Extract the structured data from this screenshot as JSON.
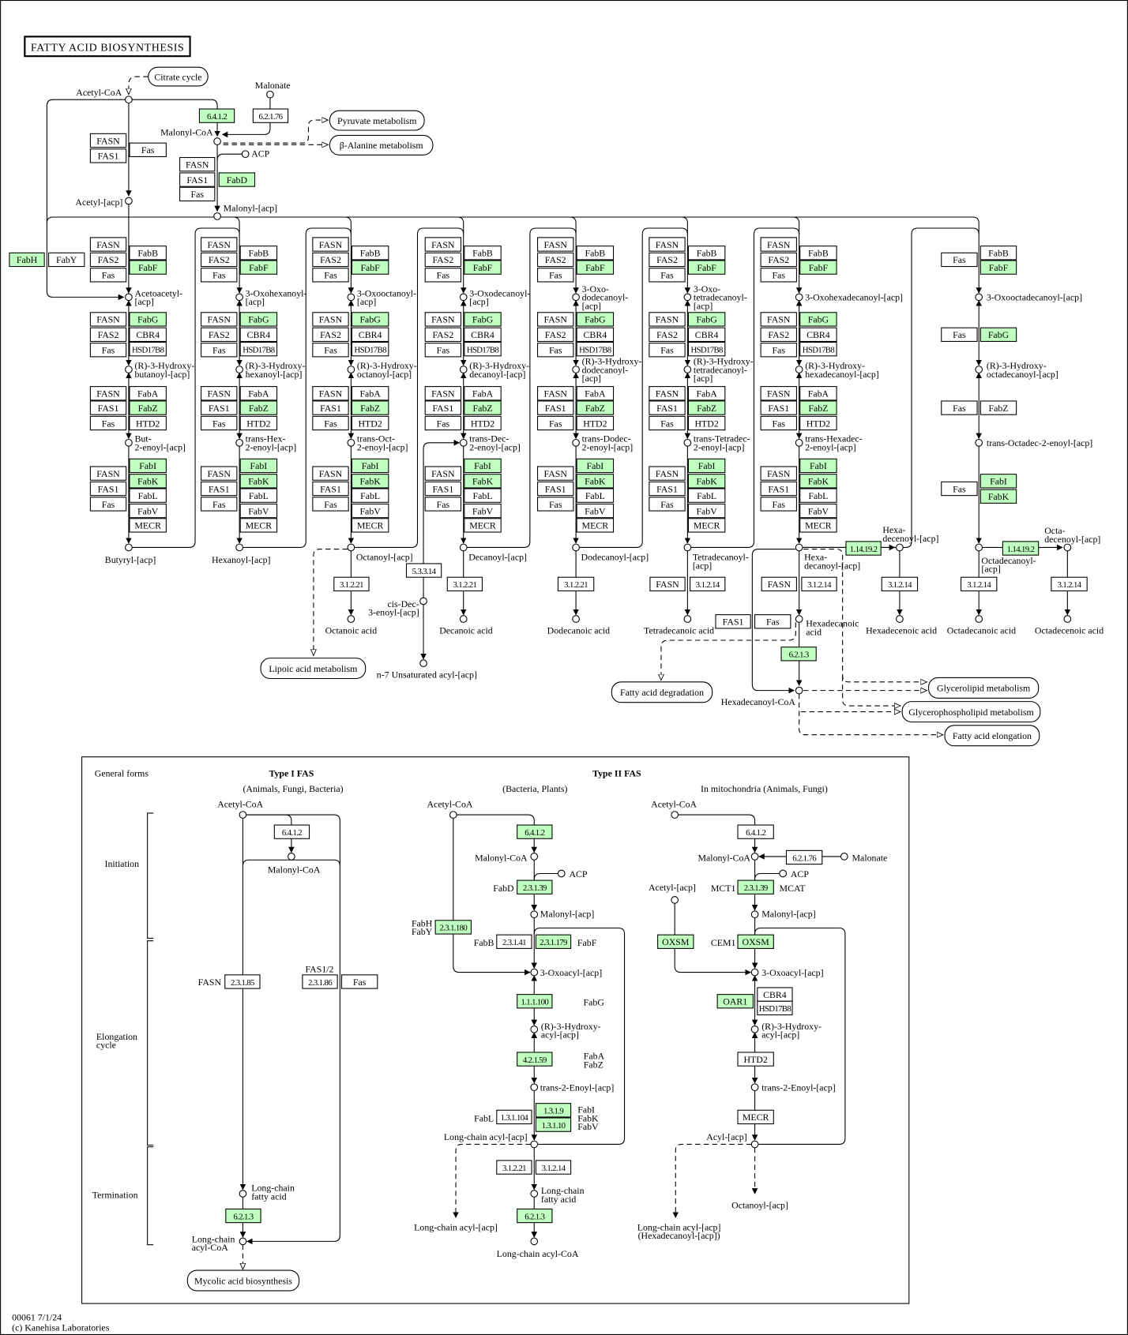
{
  "title": "FATTY ACID BIOSYNTHESIS",
  "colors": {
    "highlight": "#bfffbf",
    "line": "#000000",
    "background": "#ffffff"
  },
  "maps": [
    "Citrate cycle",
    "Pyruvate metabolism",
    "β-Alanine metabolism",
    "Lipoic acid metabolism",
    "Fatty acid degradation",
    "Glycerolipid metabolism",
    "Glycerophospholipid metabolism",
    "Fatty acid elongation",
    "Mycolic acid biosynthesis"
  ],
  "elongation_columns": [
    {
      "condensing_left": [
        "FASN",
        "FAS2",
        "Fas"
      ],
      "condensing_right": [
        {
          "label": "FabB"
        },
        {
          "label": "FabF",
          "highlighted": true
        }
      ],
      "oxoacyl": [
        "Acetoacetyl-",
        "[acp]"
      ],
      "reductase_left": [
        "FASN",
        "FAS2",
        "Fas"
      ],
      "reductase_right": [
        {
          "label": "FabG",
          "highlighted": true
        },
        {
          "label": "CBR4"
        },
        {
          "label": "HSD17B8"
        }
      ],
      "hydroxyacyl": [
        "(R)-3-Hydroxy-",
        "butanoyl-[acp]"
      ],
      "dehydratase_left": [
        "FASN",
        "FAS1",
        "Fas"
      ],
      "dehydratase_right": [
        {
          "label": "FabA"
        },
        {
          "label": "FabZ",
          "highlighted": true
        },
        {
          "label": "HTD2"
        }
      ],
      "enoyl": [
        "But-",
        "2-enoyl-[acp]"
      ],
      "enoyl_reductase_left": [
        "FASN",
        "FAS1",
        "Fas"
      ],
      "enoyl_reductase_right": [
        {
          "label": "FabI",
          "highlighted": true
        },
        {
          "label": "FabK",
          "highlighted": true
        },
        {
          "label": "FabL"
        },
        {
          "label": "FabV"
        },
        {
          "label": "MECR"
        }
      ],
      "product": [
        "Butyryl-[acp]"
      ]
    },
    {
      "condensing_left": [
        "FASN",
        "FAS2",
        "Fas"
      ],
      "condensing_right": [
        {
          "label": "FabB"
        },
        {
          "label": "FabF",
          "highlighted": true
        }
      ],
      "oxoacyl": [
        "3-Oxohexanoyl-",
        "[acp]"
      ],
      "reductase_left": [
        "FASN",
        "FAS2",
        "Fas"
      ],
      "reductase_right": [
        {
          "label": "FabG",
          "highlighted": true
        },
        {
          "label": "CBR4"
        },
        {
          "label": "HSD17B8"
        }
      ],
      "hydroxyacyl": [
        "(R)-3-Hydroxy-",
        "hexanoyl-[acp]"
      ],
      "dehydratase_left": [
        "FASN",
        "FAS1",
        "Fas"
      ],
      "dehydratase_right": [
        {
          "label": "FabA"
        },
        {
          "label": "FabZ",
          "highlighted": true
        },
        {
          "label": "HTD2"
        }
      ],
      "enoyl": [
        "trans-Hex-",
        "2-enoyl-[acp]"
      ],
      "enoyl_reductase_left": [
        "FASN",
        "FAS1",
        "Fas"
      ],
      "enoyl_reductase_right": [
        {
          "label": "FabI",
          "highlighted": true
        },
        {
          "label": "FabK",
          "highlighted": true
        },
        {
          "label": "FabL"
        },
        {
          "label": "FabV"
        },
        {
          "label": "MECR"
        }
      ],
      "product": [
        "Hexanoyl-[acp]"
      ]
    },
    {
      "condensing_left": [
        "FASN",
        "FAS2",
        "Fas"
      ],
      "condensing_right": [
        {
          "label": "FabB"
        },
        {
          "label": "FabF",
          "highlighted": true
        }
      ],
      "oxoacyl": [
        "3-Oxooctanoyl-",
        "[acp]"
      ],
      "reductase_left": [
        "FASN",
        "FAS2",
        "Fas"
      ],
      "reductase_right": [
        {
          "label": "FabG",
          "highlighted": true
        },
        {
          "label": "CBR4"
        },
        {
          "label": "HSD17B8"
        }
      ],
      "hydroxyacyl": [
        "(R)-3-Hydroxy-",
        "octanoyl-[acp]"
      ],
      "dehydratase_left": [
        "FASN",
        "FAS1",
        "Fas"
      ],
      "dehydratase_right": [
        {
          "label": "FabA"
        },
        {
          "label": "FabZ",
          "highlighted": true
        },
        {
          "label": "HTD2"
        }
      ],
      "enoyl": [
        "trans-Oct-",
        "2-enoyl-[acp]"
      ],
      "enoyl_reductase_left": [
        "FASN",
        "FAS1",
        "Fas"
      ],
      "enoyl_reductase_right": [
        {
          "label": "FabI",
          "highlighted": true
        },
        {
          "label": "FabK",
          "highlighted": true
        },
        {
          "label": "FabL"
        },
        {
          "label": "FabV"
        },
        {
          "label": "MECR"
        }
      ],
      "product": [
        "Octanoyl-[acp]"
      ]
    },
    {
      "condensing_left": [
        "FASN",
        "FAS2",
        "Fas"
      ],
      "condensing_right": [
        {
          "label": "FabB"
        },
        {
          "label": "FabF",
          "highlighted": true
        }
      ],
      "oxoacyl": [
        "3-Oxodecanoyl-",
        "[acp]"
      ],
      "reductase_left": [
        "FASN",
        "FAS2",
        "Fas"
      ],
      "reductase_right": [
        {
          "label": "FabG",
          "highlighted": true
        },
        {
          "label": "CBR4"
        },
        {
          "label": "HSD17B8"
        }
      ],
      "hydroxyacyl": [
        "(R)-3-Hydroxy-",
        "decanoyl-[acp]"
      ],
      "dehydratase_left": [
        "FASN",
        "FAS1",
        "Fas"
      ],
      "dehydratase_right": [
        {
          "label": "FabA"
        },
        {
          "label": "FabZ",
          "highlighted": true
        },
        {
          "label": "HTD2"
        }
      ],
      "enoyl": [
        "trans-Dec-",
        "2-enoyl-[acp]"
      ],
      "enoyl_reductase_left": [
        "FASN",
        "FAS1",
        "Fas"
      ],
      "enoyl_reductase_right": [
        {
          "label": "FabI",
          "highlighted": true
        },
        {
          "label": "FabK",
          "highlighted": true
        },
        {
          "label": "FabL"
        },
        {
          "label": "FabV"
        },
        {
          "label": "MECR"
        }
      ],
      "product": [
        "Decanoyl-[acp]"
      ]
    },
    {
      "condensing_left": [
        "FASN",
        "FAS2",
        "Fas"
      ],
      "condensing_right": [
        {
          "label": "FabB"
        },
        {
          "label": "FabF",
          "highlighted": true
        }
      ],
      "oxoacyl": [
        "3-Oxo-",
        "dodecanoyl-",
        "[acp]"
      ],
      "reductase_left": [
        "FASN",
        "FAS2",
        "Fas"
      ],
      "reductase_right": [
        {
          "label": "FabG",
          "highlighted": true
        },
        {
          "label": "CBR4"
        },
        {
          "label": "HSD17B8"
        }
      ],
      "hydroxyacyl": [
        "(R)-3-Hydroxy-",
        "dodecanoyl-",
        "[acp]"
      ],
      "dehydratase_left": [
        "FASN",
        "FAS1",
        "Fas"
      ],
      "dehydratase_right": [
        {
          "label": "FabA"
        },
        {
          "label": "FabZ",
          "highlighted": true
        },
        {
          "label": "HTD2"
        }
      ],
      "enoyl": [
        "trans-Dodec-",
        "2-enoyl-[acp]"
      ],
      "enoyl_reductase_left": [
        "FASN",
        "FAS1",
        "Fas"
      ],
      "enoyl_reductase_right": [
        {
          "label": "FabI",
          "highlighted": true
        },
        {
          "label": "FabK",
          "highlighted": true
        },
        {
          "label": "FabL"
        },
        {
          "label": "FabV"
        },
        {
          "label": "MECR"
        }
      ],
      "product": [
        "Dodecanoyl-[acp]"
      ]
    },
    {
      "condensing_left": [
        "FASN",
        "FAS2",
        "Fas"
      ],
      "condensing_right": [
        {
          "label": "FabB"
        },
        {
          "label": "FabF",
          "highlighted": true
        }
      ],
      "oxoacyl": [
        "3-Oxo-",
        "tetradecanoyl-",
        "[acp]"
      ],
      "reductase_left": [
        "FASN",
        "FAS2",
        "Fas"
      ],
      "reductase_right": [
        {
          "label": "FabG",
          "highlighted": true
        },
        {
          "label": "CBR4"
        },
        {
          "label": "HSD17B8"
        }
      ],
      "hydroxyacyl": [
        "(R)-3-Hydroxy-",
        "tetradecanoyl-",
        "[acp]"
      ],
      "dehydratase_left": [
        "FASN",
        "FAS1",
        "Fas"
      ],
      "dehydratase_right": [
        {
          "label": "FabA"
        },
        {
          "label": "FabZ",
          "highlighted": true
        },
        {
          "label": "HTD2"
        }
      ],
      "enoyl": [
        "trans-Tetradec-",
        "2-enoyl-[acp]"
      ],
      "enoyl_reductase_left": [
        "FASN",
        "FAS1",
        "Fas"
      ],
      "enoyl_reductase_right": [
        {
          "label": "FabI",
          "highlighted": true
        },
        {
          "label": "FabK",
          "highlighted": true
        },
        {
          "label": "FabL"
        },
        {
          "label": "FabV"
        },
        {
          "label": "MECR"
        }
      ],
      "product": [
        "Tetradecanoyl-",
        "[acp]"
      ]
    },
    {
      "condensing_left": [
        "FASN",
        "FAS2",
        "Fas"
      ],
      "condensing_right": [
        {
          "label": "FabB"
        },
        {
          "label": "FabF",
          "highlighted": true
        }
      ],
      "oxoacyl": [
        "3-Oxohexadecanoyl-[acp]"
      ],
      "reductase_left": [
        "FASN",
        "FAS2",
        "Fas"
      ],
      "reductase_right": [
        {
          "label": "FabG",
          "highlighted": true
        },
        {
          "label": "CBR4"
        },
        {
          "label": "HSD17B8"
        }
      ],
      "hydroxyacyl": [
        "(R)-3-Hydroxy-",
        "hexadecanoyl-[acp]"
      ],
      "dehydratase_left": [
        "FASN",
        "FAS1",
        "Fas"
      ],
      "dehydratase_right": [
        {
          "label": "FabA"
        },
        {
          "label": "FabZ",
          "highlighted": true
        },
        {
          "label": "HTD2"
        }
      ],
      "enoyl": [
        "trans-Hexadec-",
        "2-enoyl-[acp]"
      ],
      "enoyl_reductase_left": [
        "FASN",
        "FAS1",
        "Fas"
      ],
      "enoyl_reductase_right": [
        {
          "label": "FabI",
          "highlighted": true
        },
        {
          "label": "FabK",
          "highlighted": true
        },
        {
          "label": "FabL"
        },
        {
          "label": "FabV"
        },
        {
          "label": "MECR"
        }
      ],
      "product": [
        "Hexa-",
        "decanoyl-[acp]"
      ]
    }
  ],
  "enzymes": [
    {
      "label": "6.4.1.2",
      "highlighted": true
    },
    {
      "label": "6.2.1.76"
    },
    {
      "label": "FASN"
    },
    {
      "label": "FAS1"
    },
    {
      "label": "Fas"
    },
    {
      "label": "FASN"
    },
    {
      "label": "FAS1"
    },
    {
      "label": "Fas"
    },
    {
      "label": "FabD",
      "highlighted": true
    },
    {
      "label": "FabH",
      "highlighted": true
    },
    {
      "label": "FabY"
    },
    {
      "label": "Fas"
    },
    {
      "label": "FabB"
    },
    {
      "label": "FabF",
      "highlighted": true
    },
    {
      "label": "Fas"
    },
    {
      "label": "FabG",
      "highlighted": true
    },
    {
      "label": "Fas"
    },
    {
      "label": "FabZ"
    },
    {
      "label": "Fas"
    },
    {
      "label": "FabI",
      "highlighted": true
    },
    {
      "label": "FabK",
      "highlighted": true
    },
    {
      "label": "3.1.2.21"
    },
    {
      "label": "5.3.3.14"
    },
    {
      "label": "3.1.2.21"
    },
    {
      "label": "3.1.2.21"
    },
    {
      "label": "FASN"
    },
    {
      "label": "3.1.2.14"
    },
    {
      "label": "FASN"
    },
    {
      "label": "3.1.2.14"
    },
    {
      "label": "FAS1"
    },
    {
      "label": "Fas"
    },
    {
      "label": "6.2.1.3",
      "highlighted": true
    },
    {
      "label": "1.14.19.2",
      "highlighted": true
    },
    {
      "label": "3.1.2.14"
    },
    {
      "label": "1.14.19.2",
      "highlighted": true
    },
    {
      "label": "3.1.2.14"
    },
    {
      "label": "3.1.2.14"
    },
    {
      "label": "6.4.1.2"
    },
    {
      "label": "2.3.1.85"
    },
    {
      "label": "2.3.1.86"
    },
    {
      "label": "Fas"
    },
    {
      "label": "6.2.1.3",
      "highlighted": true
    },
    {
      "label": "6.4.1.2",
      "highlighted": true
    },
    {
      "label": "2.3.1.39",
      "highlighted": true
    },
    {
      "label": "2.3.1.180",
      "highlighted": true
    },
    {
      "label": "2.3.1.41"
    },
    {
      "label": "2.3.1.179",
      "highlighted": true
    },
    {
      "label": "1.1.1.100",
      "highlighted": true
    },
    {
      "label": "4.2.1.59",
      "highlighted": true
    },
    {
      "label": "1.3.1.104"
    },
    {
      "label": "1.3.1.9",
      "highlighted": true
    },
    {
      "label": "1.3.1.10",
      "highlighted": true
    },
    {
      "label": "3.1.2.21"
    },
    {
      "label": "3.1.2.14"
    },
    {
      "label": "6.2.1.3",
      "highlighted": true
    },
    {
      "label": "6.4.1.2"
    },
    {
      "label": "6.2.1.76"
    },
    {
      "label": "2.3.1.39",
      "highlighted": true
    },
    {
      "label": "OXSM",
      "highlighted": true
    },
    {
      "label": "OXSM",
      "highlighted": true
    },
    {
      "label": "OAR1",
      "highlighted": true
    },
    {
      "label": "CBR4"
    },
    {
      "label": "HSD17B8"
    },
    {
      "label": "HTD2"
    },
    {
      "label": "MECR"
    }
  ],
  "compounds": [
    [
      "Acetyl-CoA"
    ],
    [
      "Malonate"
    ],
    [
      "Malonyl-CoA"
    ],
    [
      "ACP"
    ],
    [
      "Acetyl-[acp]"
    ],
    [
      "Malonyl-[acp]"
    ],
    [
      "3-Oxooctadecanoyl-[acp]"
    ],
    [
      "(R)-3-Hydroxy-",
      "octadecanoyl-[acp]"
    ],
    [
      "trans-Octadec-2-enoyl-[acp]"
    ],
    [
      "Octadecanoyl-",
      "[acp]"
    ],
    [
      "Hexa-",
      "decenoyl-[acp]"
    ],
    [
      "Octa-",
      "decenoyl-[acp]"
    ],
    [
      "Octanoic acid"
    ],
    [
      "cis-Dec-",
      "3-enoyl-[acp]"
    ],
    [
      "n-7 Unsaturated acyl-[acp]"
    ],
    [
      "Decanoic acid"
    ],
    [
      "Dodecanoic acid"
    ],
    [
      "Tetradecanoic acid"
    ],
    [
      "Hexadecanoic",
      "acid"
    ],
    [
      "Hexadecanoyl-CoA"
    ],
    [
      "Hexadecenoic acid"
    ],
    [
      "Octadecanoic acid"
    ],
    [
      "Octadecenoic acid"
    ],
    [
      "Acetyl-CoA"
    ],
    [
      "Malonyl-CoA"
    ],
    [
      "Long-chain",
      "fatty acid"
    ],
    [
      "Long-chain",
      "acyl-CoA"
    ],
    [
      "Acetyl-CoA"
    ],
    [
      "Malonyl-CoA"
    ],
    [
      "ACP"
    ],
    [
      "Malonyl-[acp]"
    ],
    [
      "3-Oxoacyl-[acp]"
    ],
    [
      "(R)-3-Hydroxy-",
      "acyl-[acp]"
    ],
    [
      "trans-2-Enoyl-[acp]"
    ],
    [
      "Long-chain acyl-[acp]"
    ],
    [
      "Long-chain",
      "fatty acid"
    ],
    [
      "Long-chain acyl-CoA"
    ],
    [
      "Acetyl-CoA"
    ],
    [
      "Malonyl-CoA"
    ],
    [
      "Malonate"
    ],
    [
      "ACP"
    ],
    [
      "Acetyl-[acp]"
    ],
    [
      "Malonyl-[acp]"
    ],
    [
      "3-Oxoacyl-[acp]"
    ],
    [
      "(R)-3-Hydroxy-",
      "acyl-[acp]"
    ],
    [
      "trans-2-Enoyl-[acp]"
    ],
    [
      "Acyl-[acp]"
    ]
  ],
  "labels": [
    [
      "General forms"
    ],
    [
      "Type I FAS"
    ],
    [
      "(Animals, Fungi, Bacteria)"
    ],
    [
      "Type II FAS"
    ],
    [
      "(Bacteria, Plants)"
    ],
    [
      "In mitochondria (Animals, Fungi)"
    ],
    [
      "Initiation"
    ],
    [
      "Elongation",
      "cycle"
    ],
    [
      "Termination"
    ],
    [
      "FASN"
    ],
    [
      "FAS1/2"
    ],
    [
      "FabD"
    ],
    [
      "FabH",
      "FabY"
    ],
    [
      "FabB"
    ],
    [
      "FabF"
    ],
    [
      "FabG"
    ],
    [
      "FabA",
      "FabZ"
    ],
    [
      "FabL"
    ],
    [
      "FabI",
      "FabK",
      "FabV"
    ],
    [
      "MCT1"
    ],
    [
      "MCAT"
    ],
    [
      "CEM1"
    ],
    [
      "Long-chain acyl-[acp]"
    ],
    [
      "Octanoyl-[acp]"
    ],
    [
      "Long-chain acyl-[acp]",
      "(Hexadecanoyl-[acp])"
    ]
  ],
  "footer": [
    "00061 7/1/24",
    "(c) Kanehisa Laboratories"
  ]
}
